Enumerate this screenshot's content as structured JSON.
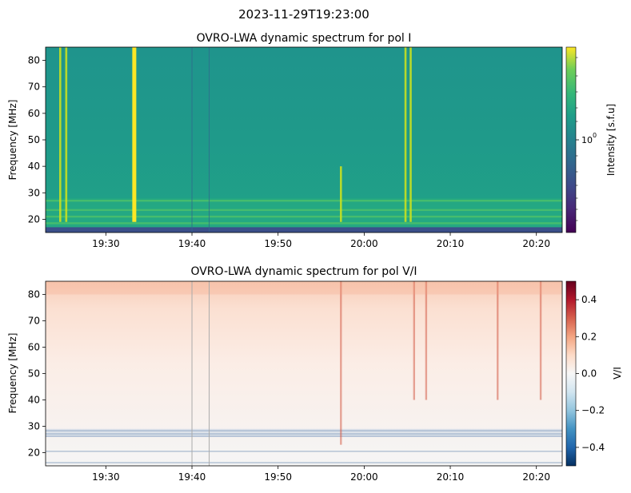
{
  "figure": {
    "suptitle": "2023-11-29T19:23:00"
  },
  "chart_data": [
    {
      "type": "heatmap",
      "title": "OVRO-LWA dynamic spectrum for pol I",
      "xlabel": "",
      "ylabel": "Frequency [MHz]",
      "x_ticks": [
        "19:30",
        "19:40",
        "19:50",
        "20:00",
        "20:10",
        "20:20"
      ],
      "x_tick_minutes": [
        30,
        40,
        50,
        60,
        70,
        80
      ],
      "xlim_minutes_after_19h": [
        23,
        83
      ],
      "y_ticks": [
        20,
        30,
        40,
        50,
        60,
        70,
        80
      ],
      "ylim": [
        15,
        85
      ],
      "colormap": "viridis",
      "colorbar": {
        "label": "Intensity [s.f.u]",
        "scale": "log",
        "tick_labels": [
          "10",
          "0"
        ]
      },
      "features": {
        "bright_bursts_minutes": [
          24.7,
          25.4,
          33.3,
          57.3,
          64.8,
          65.4
        ],
        "bright_bands_mhz": [
          18.5,
          21.0,
          23.5,
          27.0
        ],
        "dark_band_mhz": [
          15,
          17
        ]
      }
    },
    {
      "type": "heatmap",
      "title": "OVRO-LWA dynamic spectrum for pol V/I",
      "xlabel": "",
      "ylabel": "Frequency [MHz]",
      "x_ticks": [
        "19:30",
        "19:40",
        "19:50",
        "20:00",
        "20:10",
        "20:20"
      ],
      "x_tick_minutes": [
        30,
        40,
        50,
        60,
        70,
        80
      ],
      "xlim_minutes_after_19h": [
        23,
        83
      ],
      "y_ticks": [
        20,
        30,
        40,
        50,
        60,
        70,
        80
      ],
      "ylim": [
        15,
        85
      ],
      "colormap": "RdBu_r",
      "colorbar": {
        "label": "V/I",
        "range": [
          -0.5,
          0.5
        ],
        "ticks": [
          0.4,
          0.2,
          0.0,
          -0.2,
          -0.4
        ],
        "tick_labels": [
          "0.4",
          "0.2",
          "0.0",
          "−0.2",
          "−0.4"
        ]
      },
      "features": {
        "red_streaks_minutes": [
          57.3,
          65.8,
          67.2,
          75.5,
          80.5
        ],
        "noisy_band_mhz": [
          26,
          29
        ]
      }
    }
  ]
}
